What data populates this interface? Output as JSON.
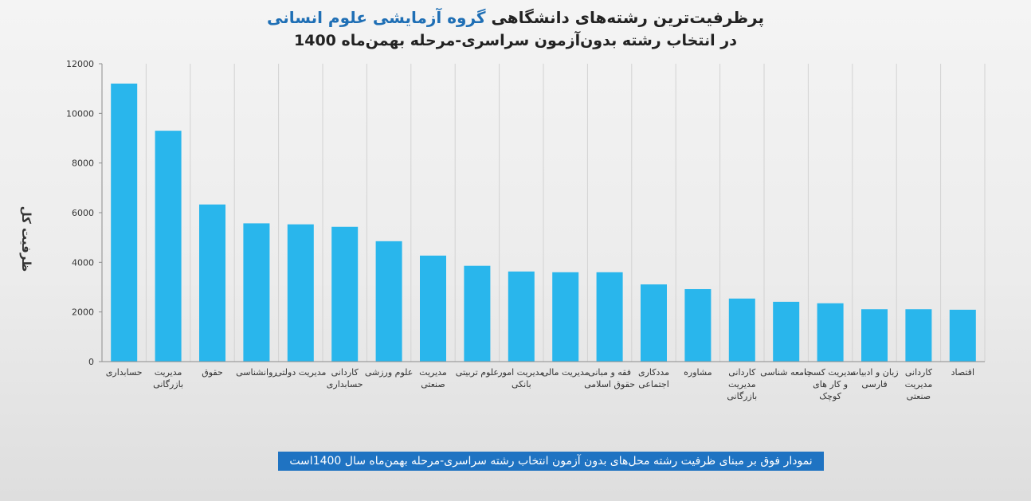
{
  "chart_data": {
    "type": "bar",
    "title": {
      "line1_main": "پرظرفیت‌ترین رشته‌های دانشگاهی",
      "line1_accent": "گروه آزمایشی علوم انسانی",
      "line2": "در  انتخاب رشته بدون‌آزمون سراسری-مرحله بهمن‌ماه 1400"
    },
    "ylabel": "ظرفیت کل",
    "xlabel": "",
    "ylim": [
      0,
      12000
    ],
    "yticks": [
      "0",
      "2000",
      "4000",
      "6000",
      "8000",
      "10000",
      "12000"
    ],
    "grid": "vertical",
    "bar_color": "#29b6ec",
    "categories": [
      [
        "حسابداری"
      ],
      [
        "مدیریت",
        "بازرگانی"
      ],
      [
        "حقوق"
      ],
      [
        "روانشناسی"
      ],
      [
        "مدیریت دولتی"
      ],
      [
        "کاردانی",
        "حسابداری"
      ],
      [
        "علوم ورزشی"
      ],
      [
        "مدیریت",
        "صنعتی"
      ],
      [
        "علوم تربیتی"
      ],
      [
        "مدیریت امور",
        "بانکی"
      ],
      [
        "مدیریت مالی"
      ],
      [
        "فقه و مبانی",
        "حقوق اسلامی"
      ],
      [
        "مددکاری",
        "اجتماعی"
      ],
      [
        "مشاوره"
      ],
      [
        "کاردانی",
        "مدیریت",
        "بازرگانی"
      ],
      [
        "جامعه شناسی"
      ],
      [
        "مدیریت کسب",
        "و کار های",
        "کوچک"
      ],
      [
        "زبان و ادبیات",
        "فارسی"
      ],
      [
        "کاردانی",
        "مدیریت",
        "صنعتی"
      ],
      [
        "اقتصاد"
      ]
    ],
    "values": [
      11200,
      9300,
      6330,
      5570,
      5530,
      5430,
      4850,
      4270,
      3860,
      3630,
      3600,
      3600,
      3110,
      2920,
      2540,
      2410,
      2350,
      2110,
      2110,
      2090
    ]
  },
  "footer_note": "نمودار فوق بر مبنای ظرفیت رشته محل‌های بدون آزمون انتخاب رشته سراسری-مرحله بهمن‌ماه سال  1400است"
}
